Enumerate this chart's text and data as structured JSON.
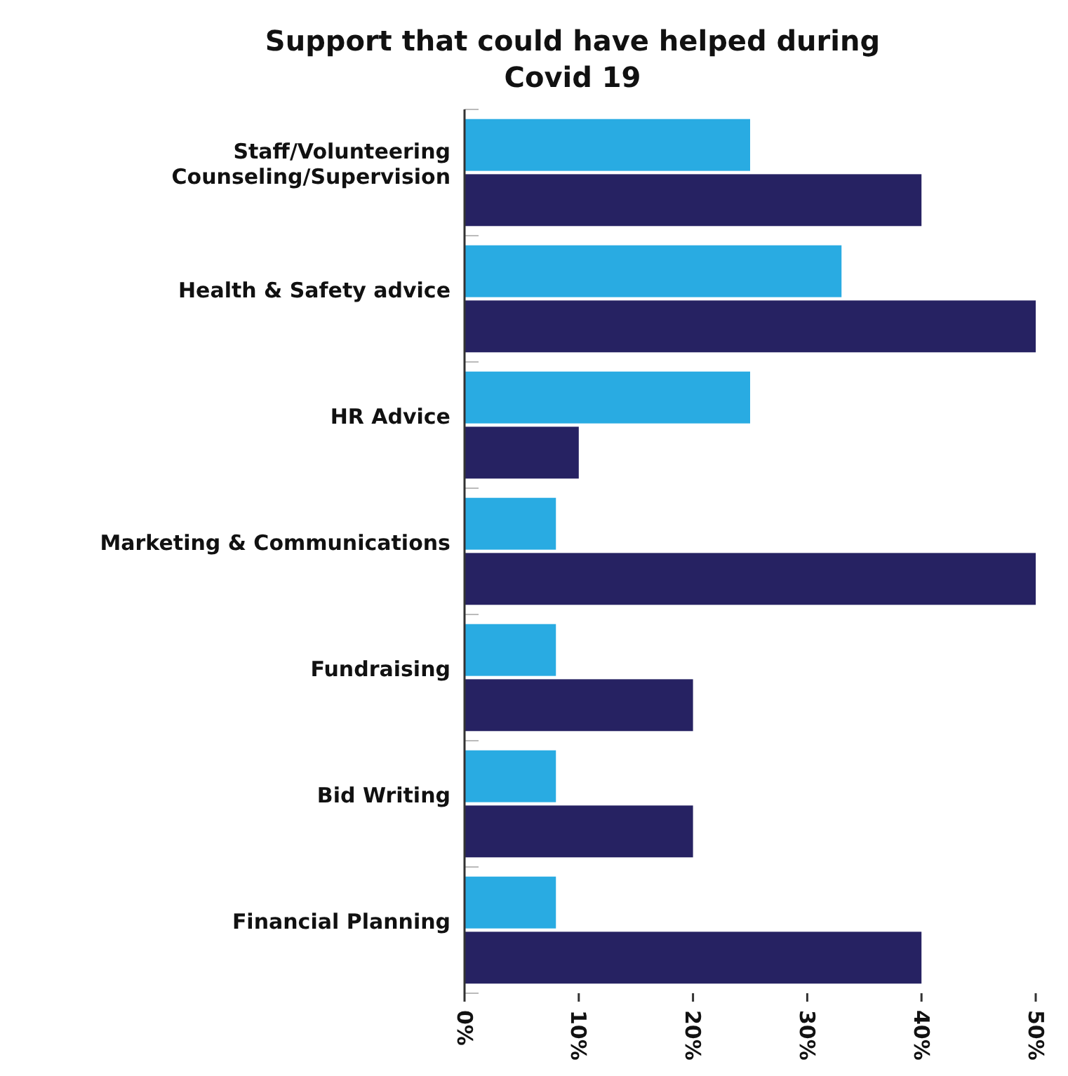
{
  "chart_data": {
    "type": "bar",
    "orientation": "horizontal",
    "title": "Support that could have helped during Covid 19",
    "categories": [
      "Staff/Volunteering Counseling/Supervision",
      "Health & Safety advice",
      "HR Advice",
      "Marketing & Communications",
      "Fundraising",
      "Bid Writing",
      "Financial Planning"
    ],
    "series": [
      {
        "color": "#29abe2",
        "values": [
          25,
          33,
          25,
          8,
          8,
          8,
          8
        ]
      },
      {
        "color": "#262262",
        "values": [
          40,
          50,
          10,
          50,
          20,
          20,
          40
        ]
      }
    ],
    "xlim": [
      0,
      50
    ],
    "xticks": [
      {
        "value": 0,
        "label": "0%"
      },
      {
        "value": 10,
        "label": "10%"
      },
      {
        "value": 20,
        "label": "20%"
      },
      {
        "value": 30,
        "label": "30%"
      },
      {
        "value": 40,
        "label": "40%"
      },
      {
        "value": 50,
        "label": "50%"
      }
    ]
  }
}
